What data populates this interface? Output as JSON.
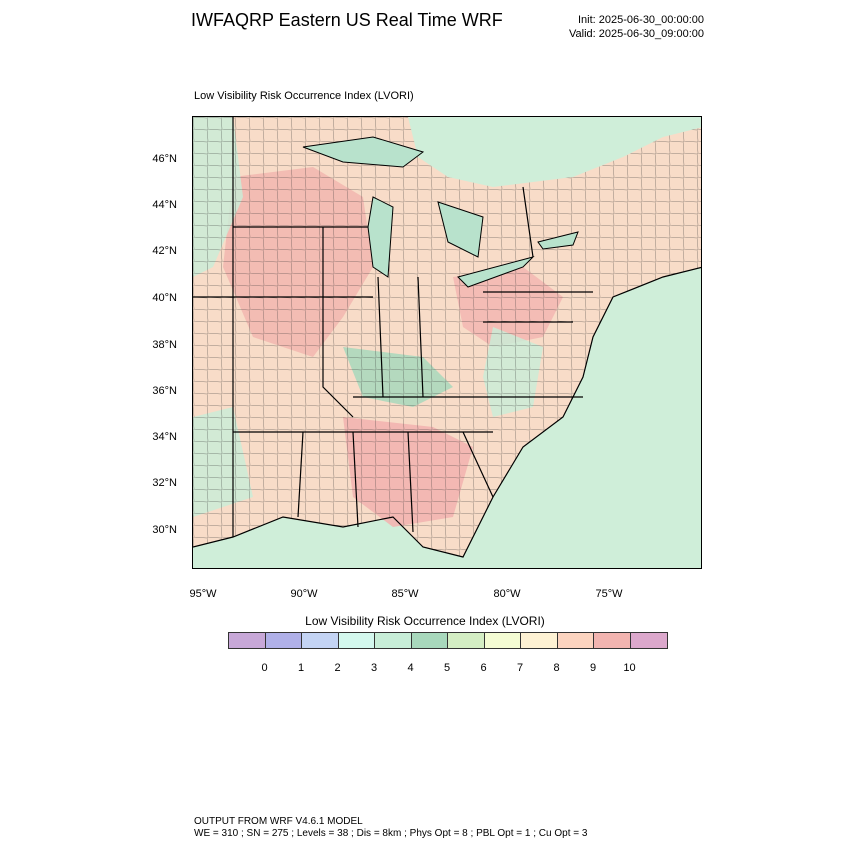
{
  "header": {
    "title": "IWFAQRP Eastern US Real Time WRF",
    "init": "Init: 2025-06-30_00:00:00",
    "valid": "Valid: 2025-06-30_09:00:00"
  },
  "plot": {
    "field_label": "Low Visibility Risk Occurrence Index   (LVORI)",
    "lat_labels": [
      "46°N",
      "44°N",
      "42°N",
      "40°N",
      "38°N",
      "36°N",
      "34°N",
      "32°N",
      "30°N"
    ],
    "lon_labels": [
      "95°W",
      "90°W",
      "85°W",
      "80°W",
      "75°W"
    ]
  },
  "colorbar": {
    "title": "Low Visibility Risk Occurrence Index  (LVORI)",
    "colors": [
      "#c8a8d8",
      "#b0b0e8",
      "#c4d4f4",
      "#d4f8ee",
      "#c8eed8",
      "#a8d8bc",
      "#d4eec4",
      "#f4fcd4",
      "#fef2d4",
      "#fcd4c0",
      "#f2b4b0",
      "#dca8cc"
    ],
    "ticks": [
      "0",
      "1",
      "2",
      "3",
      "4",
      "5",
      "6",
      "7",
      "8",
      "9",
      "10"
    ]
  },
  "footer": {
    "line1": "OUTPUT FROM WRF V4.6.1 MODEL",
    "line2": "WE = 310 ; SN = 275 ; Levels = 38 ; Dis = 8km ; Phys Opt = 8 ; PBL Opt = 1 ; Cu Opt = 3"
  }
}
